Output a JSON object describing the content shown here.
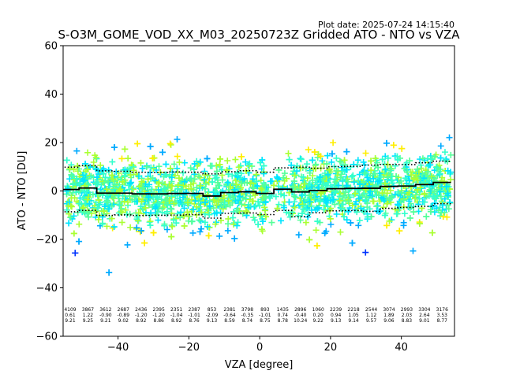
{
  "plot_date": "Plot date: 2025-07-24 14:15:40",
  "chart_data": {
    "type": "scatter",
    "title": "S-O3M_GOME_VOD_XX_M03_20250723Z Gridded ATO - NTO vs VZA",
    "xlabel": "VZA [degree]",
    "ylabel": "ATO - NTO [DU]",
    "xlim": [
      -55.5,
      55
    ],
    "ylim": [
      -60,
      60
    ],
    "xticks": [
      -40,
      -20,
      0,
      20,
      40
    ],
    "yticks": [
      -60,
      -40,
      -20,
      0,
      20,
      40,
      60
    ],
    "tick_labels_x": [
      "−40",
      "−20",
      "0",
      "20",
      "40"
    ],
    "tick_labels_y": [
      "−60",
      "−40",
      "−20",
      "0",
      "20",
      "40",
      "60"
    ],
    "grid": false,
    "marker": "+",
    "marker_colors": [
      "#00e5ff",
      "#33ffcc",
      "#55ff99",
      "#aaff33",
      "#ffee00",
      "#00aaff",
      "#0033ff"
    ],
    "bins": [
      {
        "x": -53.5,
        "count": "4109",
        "mean": "0.61",
        "std": "9.21"
      },
      {
        "x": -48.5,
        "count": "3867",
        "mean": "1.22",
        "std": "9.25"
      },
      {
        "x": -43.5,
        "count": "3612",
        "mean": "-0.90",
        "std": "9.21"
      },
      {
        "x": -38.5,
        "count": "2687",
        "mean": "-0.89",
        "std": "9.02"
      },
      {
        "x": -33.5,
        "count": "2436",
        "mean": "-1.20",
        "std": "8.92"
      },
      {
        "x": -28.5,
        "count": "2395",
        "mean": "-1.20",
        "std": "8.86"
      },
      {
        "x": -23.5,
        "count": "2351",
        "mean": "-1.04",
        "std": "8.92"
      },
      {
        "x": -18.5,
        "count": "2387",
        "mean": "-1.01",
        "std": "8.76"
      },
      {
        "x": -13.5,
        "count": "853",
        "mean": "-2.09",
        "std": "9.13"
      },
      {
        "x": -8.5,
        "count": "2381",
        "mean": "-0.64",
        "std": "8.59"
      },
      {
        "x": -3.5,
        "count": "3798",
        "mean": "-0.35",
        "std": "8.74"
      },
      {
        "x": 1.5,
        "count": "893",
        "mean": "-1.01",
        "std": "8.75"
      },
      {
        "x": 6.5,
        "count": "1435",
        "mean": "0.74",
        "std": "8.78"
      },
      {
        "x": 11.5,
        "count": "2896",
        "mean": "-0.40",
        "std": "10.24"
      },
      {
        "x": 16.5,
        "count": "1060",
        "mean": "0.20",
        "std": "9.22"
      },
      {
        "x": 21.5,
        "count": "2239",
        "mean": "0.94",
        "std": "9.13"
      },
      {
        "x": 26.5,
        "count": "2218",
        "mean": "1.05",
        "std": "9.14"
      },
      {
        "x": 31.5,
        "count": "2544",
        "mean": "1.12",
        "std": "9.57"
      },
      {
        "x": 36.5,
        "count": "3074",
        "mean": "1.89",
        "std": "9.06"
      },
      {
        "x": 41.5,
        "count": "2993",
        "mean": "2.03",
        "std": "8.83"
      },
      {
        "x": 46.5,
        "count": "3304",
        "mean": "2.64",
        "std": "9.01"
      },
      {
        "x": 51.5,
        "count": "3176",
        "mean": "3.53",
        "std": "8.77"
      }
    ]
  }
}
